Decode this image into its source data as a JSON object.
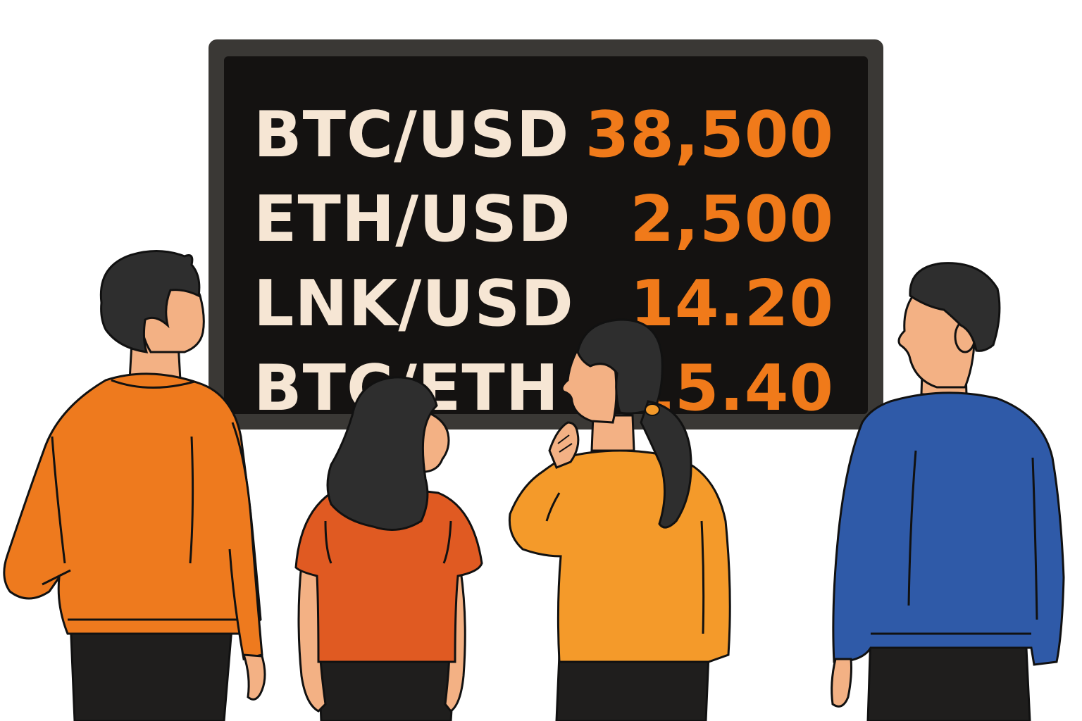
{
  "board": {
    "rows": [
      {
        "pair": "BTC/USD",
        "price": "38,500"
      },
      {
        "pair": "ETH/USD",
        "price": "2,500"
      },
      {
        "pair": "LNK/USD",
        "price": "14.20"
      },
      {
        "pair": "BTC/ETH",
        "price": "15.40"
      }
    ],
    "colors": {
      "frame": "#3a3835",
      "screen": "#141211",
      "pair_text": "#f6e6d4",
      "price_text": "#f07a1a"
    }
  },
  "people": [
    {
      "name": "man-orange-shirt",
      "shirt_color": "#ee7a1e"
    },
    {
      "name": "woman-red-shirt",
      "shirt_color": "#e05a22"
    },
    {
      "name": "woman-yellow-shirt",
      "shirt_color": "#f49a2a"
    },
    {
      "name": "man-blue-shirt",
      "shirt_color": "#2f5aa8"
    }
  ]
}
